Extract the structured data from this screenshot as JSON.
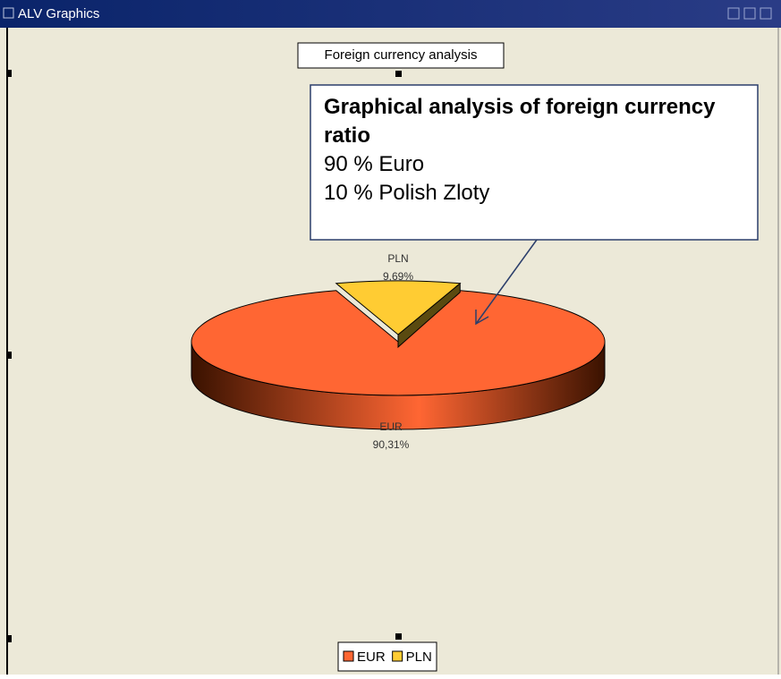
{
  "window": {
    "title": "ALV Graphics"
  },
  "callout": {
    "title": "Graphical analysis of foreign currency ratio",
    "lines": [
      "90 % Euro",
      "10 % Polish Zloty"
    ]
  },
  "chart_data": {
    "type": "pie",
    "title": "Foreign currency analysis",
    "categories": [
      "EUR",
      "PLN"
    ],
    "values": [
      90.31,
      9.69
    ],
    "value_labels": [
      "90,31%",
      "9,69%"
    ],
    "colors": [
      "#ff6633",
      "#ffcc33"
    ],
    "legend": "bottom"
  }
}
